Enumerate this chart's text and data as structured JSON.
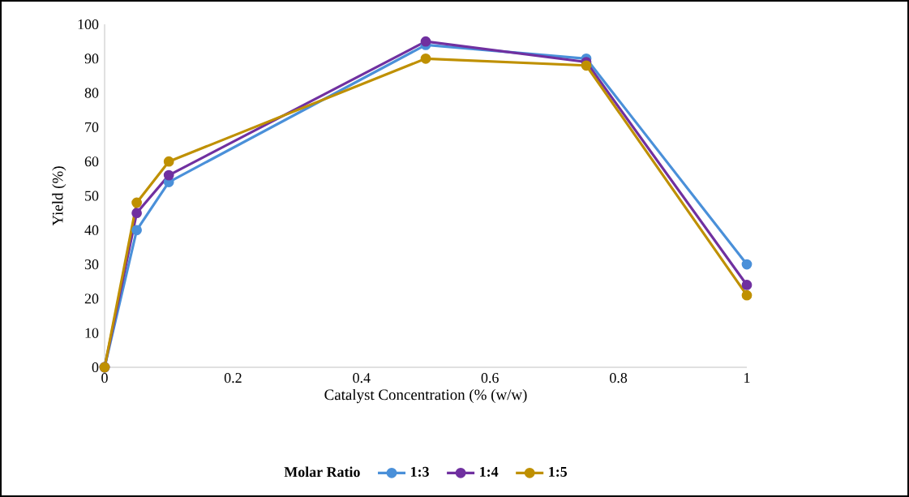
{
  "chart_data": {
    "type": "line",
    "xlabel": "Catalyst Concentration (% (w/w)",
    "ylabel": "Yield (%)",
    "legend_title": "Molar Ratio",
    "x": [
      0,
      0.05,
      0.1,
      0.5,
      0.75,
      1
    ],
    "series": [
      {
        "name": "1:3",
        "color": "#4a90d9",
        "values": [
          0,
          40,
          54,
          94,
          90,
          30
        ]
      },
      {
        "name": "1:4",
        "color": "#7030a0",
        "values": [
          0,
          45,
          56,
          95,
          89,
          24
        ]
      },
      {
        "name": "1:5",
        "color": "#bf9000",
        "values": [
          0,
          48,
          60,
          90,
          88,
          21
        ]
      }
    ],
    "xlim": [
      0,
      1
    ],
    "ylim": [
      0,
      100
    ],
    "xticks": [
      0,
      0.2,
      0.4,
      0.6,
      0.8,
      1
    ],
    "yticks": [
      0,
      10,
      20,
      30,
      40,
      50,
      60,
      70,
      80,
      90,
      100
    ],
    "grid": false,
    "legend": "bottom",
    "marker": "circle",
    "line_style": "solid"
  }
}
